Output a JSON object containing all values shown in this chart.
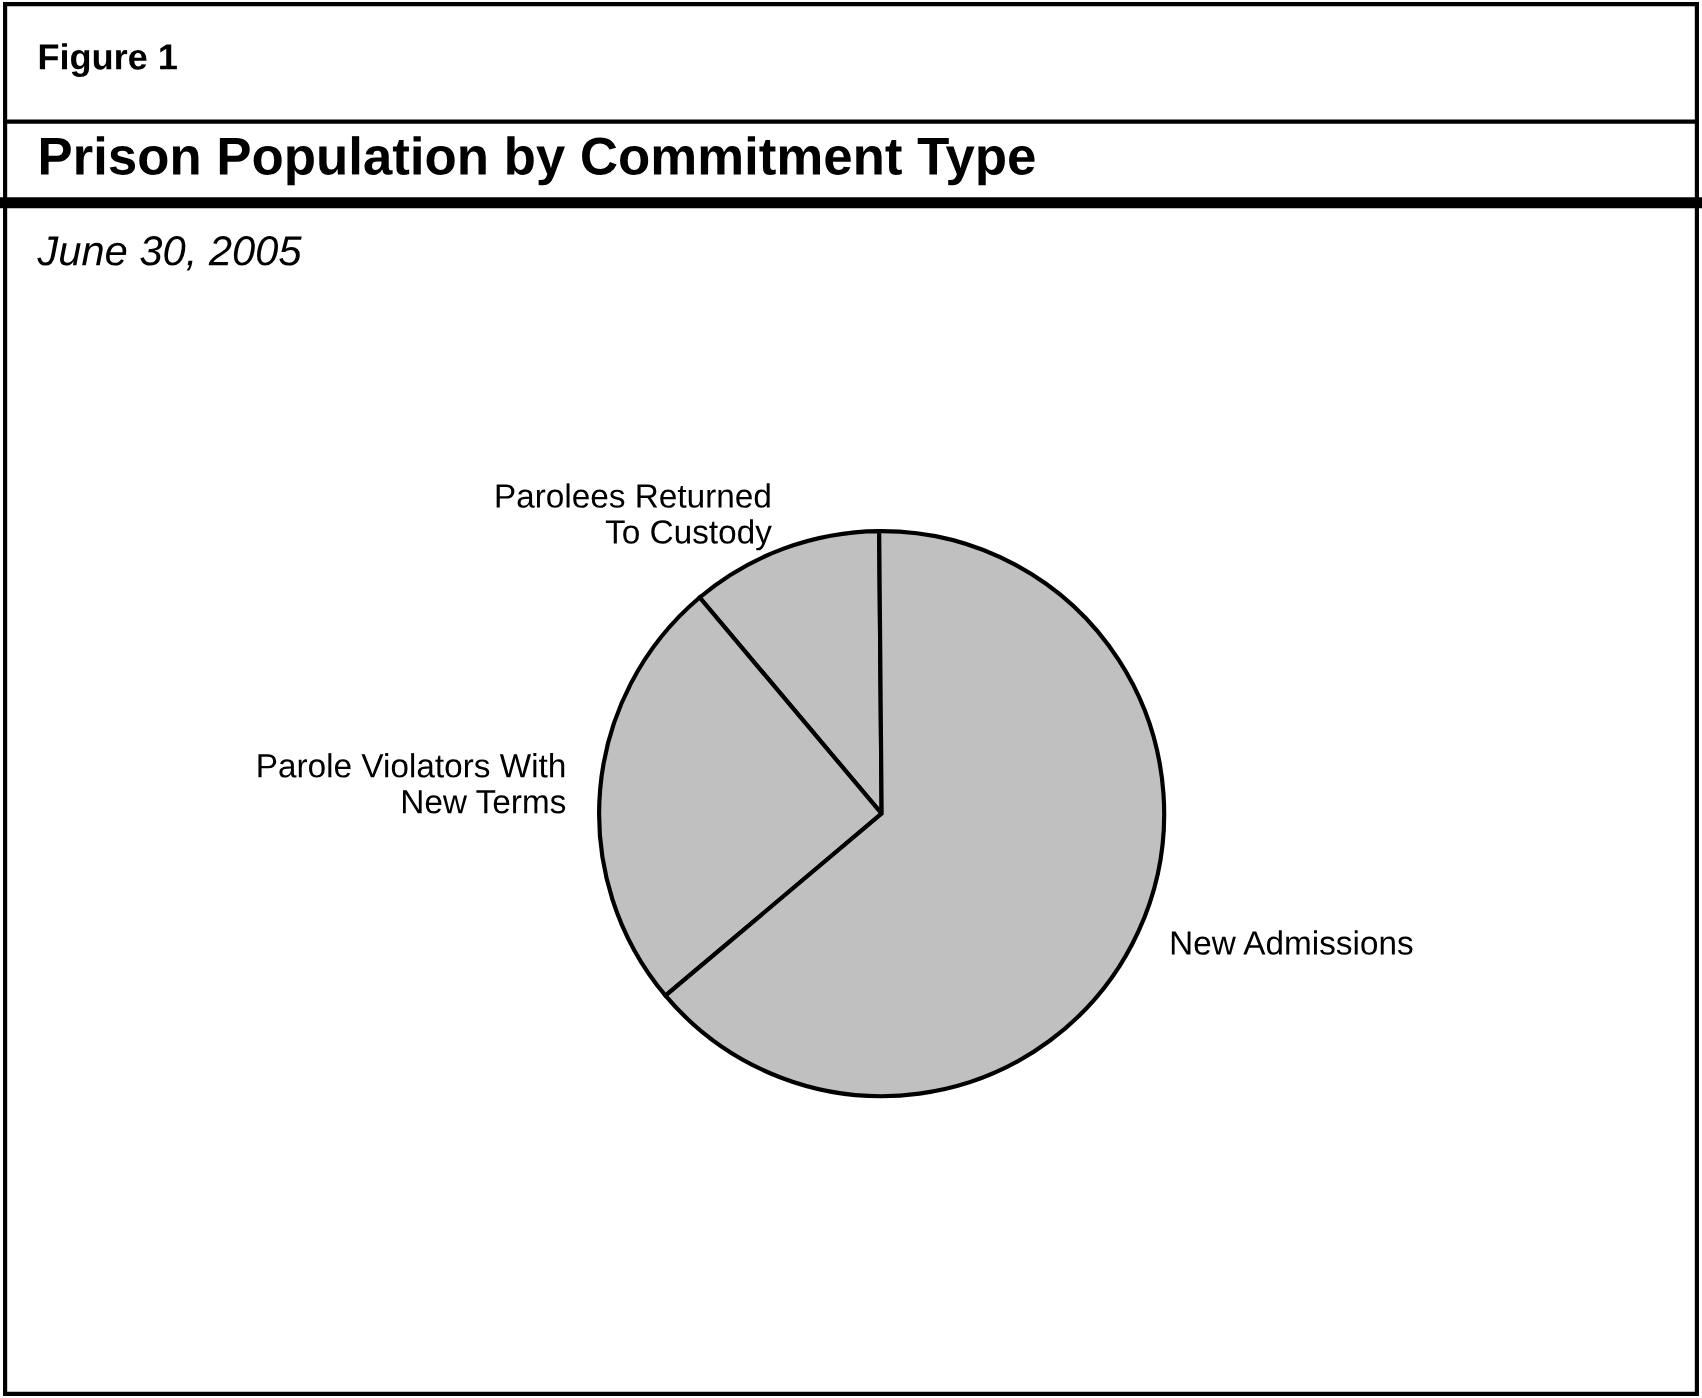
{
  "chart_data": {
    "type": "pie",
    "title": "Prison Population by Commitment Type",
    "subtitle": "June 30, 2005",
    "annotations": [
      "Figure 1"
    ],
    "categories": [
      "Parolees Returned To Custody",
      "Parole Violators With New Terms",
      "New Admissions"
    ],
    "values": [
      11,
      25,
      64
    ],
    "colors": [
      "#c0c0c0",
      "#c0c0c0",
      "#c0c0c0"
    ],
    "legend": false
  }
}
